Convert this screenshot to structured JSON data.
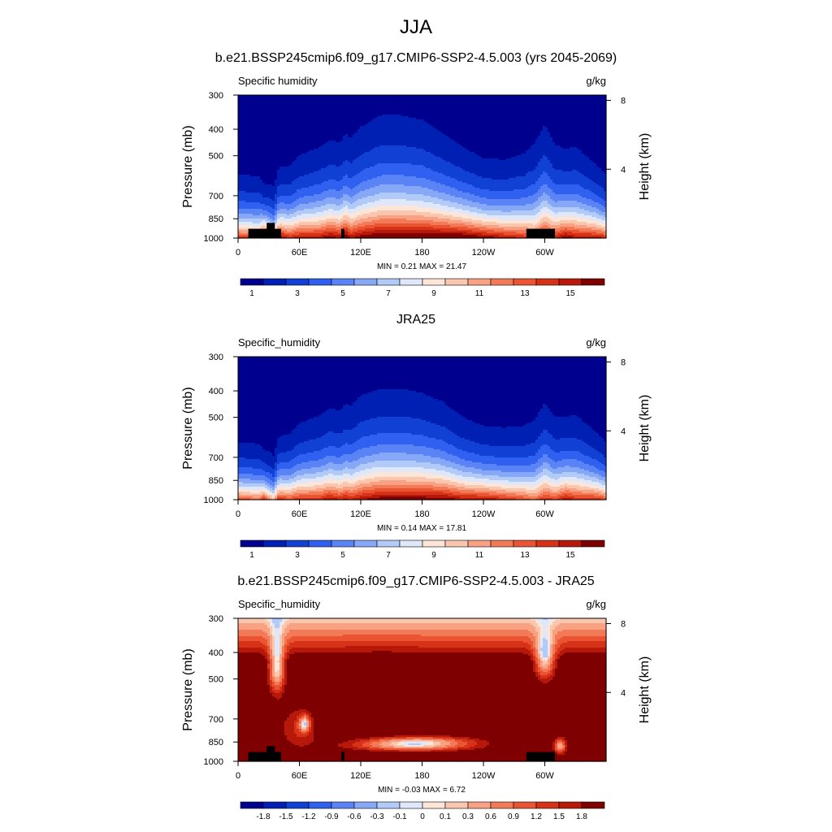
{
  "figure_title": "JJA",
  "chart_data": [
    {
      "type": "heatmap",
      "title": "b.e21.BSSP245cmip6.f09_g17.CMIP6-SSP2-4.5.003 (yrs 2045-2069)",
      "variable": "Specific humidity",
      "units": "g/kg",
      "ylabel": "Pressure (mb)",
      "right_ylabel": "Height (km)",
      "xticks": [
        "0",
        "60E",
        "120E",
        "180",
        "120W",
        "60W"
      ],
      "yticks": [
        "300",
        "400",
        "500",
        "700",
        "850",
        "1000"
      ],
      "right_yticks": [
        "8",
        "4"
      ],
      "min_label": "MIN =",
      "min_value": "0.21",
      "max_label": "MAX =",
      "max_value": "21.47",
      "colorbar_labels": [
        "1",
        "3",
        "5",
        "7",
        "9",
        "11",
        "13",
        "15"
      ],
      "colorbar_levels": [
        0,
        1,
        2,
        3,
        4,
        5,
        6,
        7,
        8,
        9,
        10,
        11,
        12,
        13,
        14,
        15,
        16
      ],
      "profile_longitudes": [
        0,
        20,
        25,
        35,
        40,
        50,
        60,
        80,
        90,
        100,
        105,
        110,
        120,
        140,
        160,
        180,
        200,
        220,
        240,
        260,
        280,
        290,
        300,
        310,
        320,
        330,
        340,
        350,
        360
      ],
      "profile_surface": [
        14,
        13,
        17,
        12,
        16,
        14,
        15,
        15,
        16,
        15,
        17,
        15,
        16,
        17,
        17,
        17,
        17,
        17,
        16,
        15,
        14,
        13,
        15,
        14,
        16,
        15,
        15,
        15,
        14
      ],
      "profile_scale_height": [
        1.5,
        1.5,
        1.2,
        1.3,
        1.6,
        1.7,
        1.9,
        2.1,
        2.2,
        2.2,
        2.3,
        2.3,
        2.5,
        2.7,
        2.7,
        2.6,
        2.3,
        2.0,
        1.8,
        1.8,
        2.0,
        2.3,
        2.6,
        2.2,
        2.0,
        2.1,
        1.9,
        1.7,
        1.5
      ],
      "topography_blocks": [
        {
          "lon": [
            10,
            42
          ],
          "p_top": 925
        },
        {
          "lon": [
            28,
            36
          ],
          "p_top": 880
        },
        {
          "lon": [
            101,
            104
          ],
          "p_top": 925
        },
        {
          "lon": [
            282,
            310
          ],
          "p_top": 925
        }
      ],
      "pressure_range": [
        1000,
        300
      ],
      "lon_range": [
        0,
        360
      ]
    },
    {
      "type": "heatmap",
      "title": "JRA25",
      "variable": "Specific_humidity",
      "units": "g/kg",
      "ylabel": "Pressure (mb)",
      "right_ylabel": "Height (km)",
      "xticks": [
        "0",
        "60E",
        "120E",
        "180",
        "120W",
        "60W"
      ],
      "yticks": [
        "300",
        "400",
        "500",
        "700",
        "850",
        "1000"
      ],
      "right_yticks": [
        "8",
        "4"
      ],
      "min_label": "MIN =",
      "min_value": "0.14",
      "max_label": "MAX =",
      "max_value": "17.81",
      "colorbar_labels": [
        "1",
        "3",
        "5",
        "7",
        "9",
        "11",
        "13",
        "15"
      ],
      "colorbar_levels": [
        0,
        1,
        2,
        3,
        4,
        5,
        6,
        7,
        8,
        9,
        10,
        11,
        12,
        13,
        14,
        15,
        16
      ],
      "profile_longitudes": [
        0,
        20,
        25,
        35,
        40,
        50,
        60,
        80,
        90,
        100,
        105,
        110,
        120,
        140,
        160,
        180,
        200,
        220,
        240,
        260,
        280,
        290,
        300,
        310,
        320,
        330,
        340,
        350,
        360
      ],
      "profile_surface": [
        13,
        12,
        14,
        10,
        14,
        13,
        14,
        14,
        15,
        14,
        15,
        14,
        15,
        16,
        16,
        16,
        16,
        15,
        15,
        14,
        13,
        12,
        14,
        13,
        15,
        14,
        14,
        14,
        13
      ],
      "profile_scale_height": [
        1.4,
        1.4,
        1.2,
        1.2,
        1.5,
        1.6,
        1.8,
        2.0,
        2.1,
        2.1,
        2.2,
        2.2,
        2.4,
        2.5,
        2.5,
        2.4,
        2.2,
        1.9,
        1.7,
        1.7,
        1.8,
        2.0,
        2.3,
        2.0,
        1.9,
        2.0,
        1.8,
        1.6,
        1.4
      ],
      "topography_blocks": [],
      "pressure_range": [
        1000,
        300
      ],
      "lon_range": [
        0,
        360
      ]
    },
    {
      "type": "heatmap",
      "title": "b.e21.BSSP245cmip6.f09_g17.CMIP6-SSP2-4.5.003 - JRA25",
      "variable": "Specific_humidity",
      "units": "g/kg",
      "ylabel": "Pressure (mb)",
      "right_ylabel": "Height (km)",
      "xticks": [
        "0",
        "60E",
        "120E",
        "180",
        "120W",
        "60W"
      ],
      "yticks": [
        "300",
        "400",
        "500",
        "700",
        "850",
        "1000"
      ],
      "right_yticks": [
        "8",
        "4"
      ],
      "min_label": "MIN =",
      "min_value": "-0.03",
      "max_label": "MAX =",
      "max_value": "6.72",
      "colorbar_labels": [
        "-1.8",
        "-1.5",
        "-1.2",
        "-0.9",
        "-0.6",
        "-0.3",
        "-0.1",
        "0",
        "0.1",
        "0.3",
        "0.6",
        "0.9",
        "1.2",
        "1.5",
        "1.8"
      ],
      "colorbar_levels": [
        -2.1,
        -1.8,
        -1.5,
        -1.2,
        -0.9,
        -0.6,
        -0.3,
        -0.1,
        0,
        0.1,
        0.3,
        0.6,
        0.9,
        1.2,
        1.5,
        1.8,
        2.1
      ],
      "diff_patches": [
        {
          "lon": 140,
          "p": 650,
          "rlon": 45,
          "rp": 220,
          "v": 2.5
        },
        {
          "lon": 60,
          "p": 760,
          "rlon": 20,
          "rp": 140,
          "v": 1.5
        },
        {
          "lon": 65,
          "p": 730,
          "rlon": 5,
          "rp": 50,
          "v": 0.7
        },
        {
          "lon": 175,
          "p": 840,
          "rlon": 55,
          "rp": 35,
          "v": 1.0
        },
        {
          "lon": 170,
          "p": 880,
          "rlon": 60,
          "rp": 40,
          "v": 0.6
        },
        {
          "lon": 315,
          "p": 880,
          "rlon": 6,
          "rp": 60,
          "v": 0.5
        },
        {
          "lon": 38,
          "p": 450,
          "rlon": 8,
          "rp": 110,
          "v": 0.2
        },
        {
          "lon": 300,
          "p": 420,
          "rlon": 10,
          "rp": 80,
          "v": 0.3
        }
      ],
      "topography_blocks": [
        {
          "lon": [
            10,
            42
          ],
          "p_top": 925
        },
        {
          "lon": [
            28,
            36
          ],
          "p_top": 880
        },
        {
          "lon": [
            101,
            104
          ],
          "p_top": 925
        },
        {
          "lon": [
            282,
            310
          ],
          "p_top": 925
        }
      ],
      "pressure_range": [
        1000,
        300
      ],
      "lon_range": [
        0,
        360
      ]
    }
  ],
  "colors": {
    "colormap": [
      "#00008f",
      "#0020b4",
      "#1040d4",
      "#2f60ef",
      "#5a84f5",
      "#86a8f7",
      "#b2caf8",
      "#dfe8fa",
      "#fde6d8",
      "#fac6ae",
      "#f8a183",
      "#f37a57",
      "#ea5432",
      "#d63218",
      "#b8180a",
      "#7f0000"
    ]
  }
}
